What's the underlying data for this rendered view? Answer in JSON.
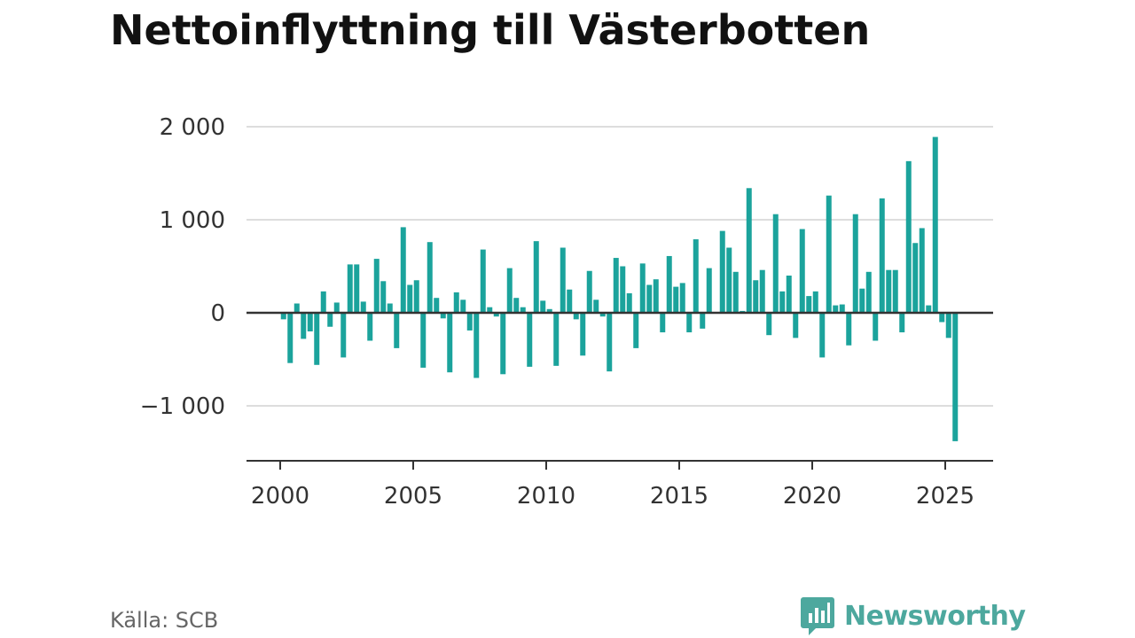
{
  "title": "Nettoinflyttning till Västerbotten",
  "source": "Källa: SCB",
  "brand": {
    "name": "Newsworthy",
    "icon": "newsworthy-logo-icon",
    "color": "#4da89e"
  },
  "colors": {
    "bar": "#1ba39c",
    "grid": "#dddddd",
    "axis": "#333333"
  },
  "chart_data": {
    "type": "bar",
    "title": "Nettoinflyttning till Västerbotten",
    "xlabel": "",
    "ylabel": "",
    "frequency": "quarterly",
    "x_start": "2000 Q1",
    "x_ticks": [
      2000,
      2005,
      2010,
      2015,
      2020,
      2025
    ],
    "y_ticks": [
      -1000,
      0,
      1000,
      2000
    ],
    "y_tick_labels": [
      "−1 000",
      "0",
      "1 000",
      "2 000"
    ],
    "xlim": [
      2000,
      2026
    ],
    "ylim": [
      -1600,
      2000
    ],
    "grid": true,
    "legend": "none",
    "values": [
      -70,
      -540,
      100,
      -280,
      -200,
      -560,
      230,
      -150,
      110,
      -480,
      520,
      520,
      120,
      -300,
      580,
      340,
      100,
      -380,
      920,
      300,
      350,
      -590,
      760,
      160,
      -60,
      -640,
      220,
      140,
      -190,
      -700,
      680,
      60,
      -40,
      -660,
      480,
      160,
      60,
      -580,
      770,
      130,
      40,
      -570,
      700,
      250,
      -70,
      -460,
      450,
      140,
      -40,
      -630,
      590,
      500,
      210,
      -380,
      530,
      300,
      360,
      -210,
      610,
      280,
      320,
      -210,
      790,
      -170,
      480,
      0,
      880,
      700,
      440,
      20,
      1340,
      350,
      460,
      -240,
      1060,
      230,
      400,
      -270,
      900,
      180,
      230,
      -480,
      1260,
      80,
      90,
      -350,
      1060,
      260,
      440,
      -300,
      1230,
      460,
      460,
      -210,
      1630,
      750,
      910,
      80,
      1890,
      -100,
      -270,
      -1380
    ]
  }
}
